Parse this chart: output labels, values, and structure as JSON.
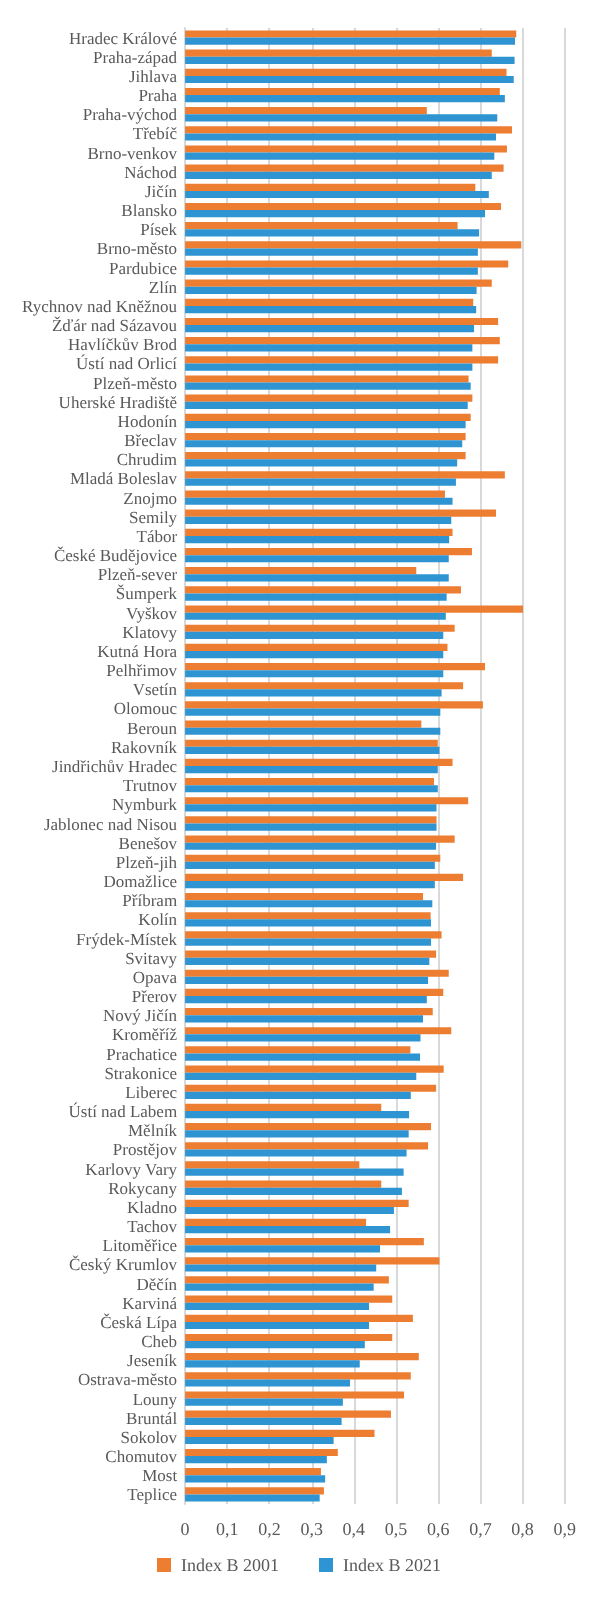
{
  "chart_data": {
    "type": "bar",
    "orientation": "horizontal",
    "legend": "bottom",
    "grid": "x",
    "xlim": [
      0,
      0.9
    ],
    "xticks": [
      0,
      {
        "value": 0.1,
        "label": "0,1"
      },
      {
        "value": 0.2,
        "label": "0,2"
      },
      {
        "value": 0.3,
        "label": "0,3"
      },
      {
        "value": 0.4,
        "label": "0,4"
      },
      {
        "value": 0.5,
        "label": "0,5"
      },
      {
        "value": 0.6,
        "label": "0,6"
      },
      {
        "value": 0.7,
        "label": "0,7"
      },
      {
        "value": 0.8,
        "label": "0,8"
      },
      {
        "value": 0.9,
        "label": "0,9"
      }
    ],
    "categories": [
      "Hradec Králové",
      "Praha-západ",
      "Jihlava",
      "Praha",
      "Praha-východ",
      "Třebíč",
      "Brno-venkov",
      "Náchod",
      "Jičín",
      "Blansko",
      "Písek",
      "Brno-město",
      "Pardubice",
      "Zlín",
      "Rychnov nad Kněžnou",
      "Žďár nad Sázavou",
      "Havlíčkův Brod",
      "Ústí nad Orlicí",
      "Plzeň-město",
      "Uherské Hradiště",
      "Hodonín",
      "Břeclav",
      "Chrudim",
      "Mladá Boleslav",
      "Znojmo",
      "Semily",
      "Tábor",
      "České Budějovice",
      "Plzeň-sever",
      "Šumperk",
      "Vyškov",
      "Klatovy",
      "Kutná Hora",
      "Pelhřimov",
      "Vsetín",
      "Olomouc",
      "Beroun",
      "Rakovník",
      "Jindřichův Hradec",
      "Trutnov",
      "Nymburk",
      "Jablonec nad Nisou",
      "Benešov",
      "Plzeň-jih",
      "Domažlice",
      "Příbram",
      "Kolín",
      "Frýdek-Místek",
      "Svitavy",
      "Opava",
      "Přerov",
      "Nový Jičín",
      "Kroměříž",
      "Prachatice",
      "Strakonice",
      "Liberec",
      "Ústí nad Labem",
      "Mělník",
      "Prostějov",
      "Karlovy Vary",
      "Rokycany",
      "Kladno",
      "Tachov",
      "Litoměřice",
      "Český Krumlov",
      "Děčín",
      "Karviná",
      "Česká Lípa",
      "Cheb",
      "Jeseník",
      "Ostrava-město",
      "Louny",
      "Bruntál",
      "Sokolov",
      "Chomutov",
      "Most",
      "Teplice"
    ],
    "series": [
      {
        "name": "Index B 2001",
        "color": "#ed7d31",
        "values": [
          0.785,
          0.727,
          0.762,
          0.746,
          0.573,
          0.775,
          0.763,
          0.755,
          0.688,
          0.749,
          0.646,
          0.797,
          0.766,
          0.727,
          0.683,
          0.742,
          0.746,
          0.742,
          0.672,
          0.681,
          0.677,
          0.665,
          0.665,
          0.758,
          0.616,
          0.737,
          0.634,
          0.68,
          0.548,
          0.654,
          0.801,
          0.639,
          0.622,
          0.711,
          0.659,
          0.706,
          0.56,
          0.599,
          0.634,
          0.59,
          0.671,
          0.596,
          0.639,
          0.605,
          0.659,
          0.564,
          0.582,
          0.608,
          0.595,
          0.625,
          0.612,
          0.587,
          0.631,
          0.534,
          0.613,
          0.595,
          0.465,
          0.583,
          0.576,
          0.413,
          0.465,
          0.53,
          0.429,
          0.566,
          0.603,
          0.483,
          0.491,
          0.54,
          0.491,
          0.554,
          0.535,
          0.519,
          0.488,
          0.449,
          0.362,
          0.322,
          0.329
        ]
      },
      {
        "name": "Index B 2021",
        "color": "#2e94d2",
        "values": [
          0.782,
          0.781,
          0.779,
          0.758,
          0.74,
          0.737,
          0.733,
          0.727,
          0.72,
          0.711,
          0.697,
          0.694,
          0.694,
          0.691,
          0.69,
          0.685,
          0.681,
          0.681,
          0.677,
          0.67,
          0.665,
          0.657,
          0.645,
          0.642,
          0.634,
          0.631,
          0.626,
          0.625,
          0.625,
          0.62,
          0.618,
          0.612,
          0.612,
          0.612,
          0.608,
          0.605,
          0.605,
          0.603,
          0.599,
          0.599,
          0.596,
          0.596,
          0.595,
          0.592,
          0.592,
          0.586,
          0.583,
          0.583,
          0.579,
          0.576,
          0.573,
          0.564,
          0.558,
          0.557,
          0.548,
          0.535,
          0.531,
          0.53,
          0.525,
          0.518,
          0.514,
          0.495,
          0.486,
          0.462,
          0.453,
          0.447,
          0.436,
          0.436,
          0.426,
          0.414,
          0.391,
          0.374,
          0.371,
          0.352,
          0.336,
          0.332,
          0.319
        ]
      }
    ]
  }
}
